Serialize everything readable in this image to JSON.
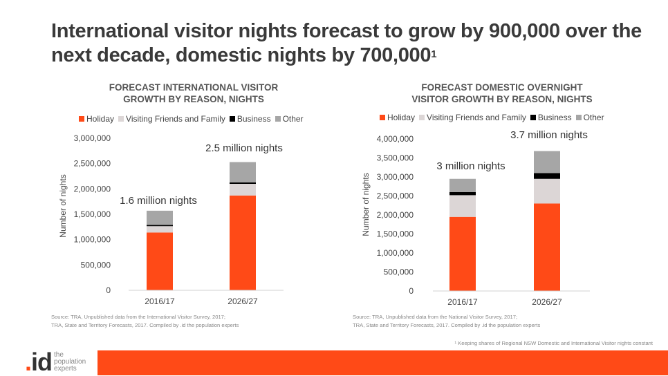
{
  "slide": {
    "title": "International visitor nights forecast to grow by 900,000 over the next decade, domestic nights by 700,000",
    "title_superscript": "1",
    "footnote": "¹ Keeping shares of Regional NSW Domestic and International Visitor nights constant"
  },
  "logo": {
    "mark_dot": ".",
    "mark_text": "id",
    "line1": "the",
    "line2": "population",
    "line3": "experts"
  },
  "colors": {
    "accent": "#ff4a17",
    "holiday": "#ff4a17",
    "vfr": "#dcd6d6",
    "business": "#000000",
    "other": "#a6a6a6"
  },
  "chart_data": [
    {
      "type": "bar",
      "stacked": true,
      "title_line1": "FORECAST INTERNATIONAL VISITOR",
      "title_line2": "GROWTH BY REASON, NIGHTS",
      "ylabel": "Number of nights",
      "xlabel": "",
      "ylim": [
        0,
        3000000
      ],
      "yticks": [
        0,
        500000,
        1000000,
        1500000,
        2000000,
        2500000,
        3000000
      ],
      "ytick_labels": [
        "0",
        "500,000",
        "1,000,000",
        "1,500,000",
        "2,000,000",
        "2,500,000",
        "3,000,000"
      ],
      "grid": false,
      "legend_position": "top",
      "categories": [
        "2016/17",
        "2026/27"
      ],
      "series": [
        {
          "name": "Holiday",
          "color": "#ff4a17",
          "values": [
            1140000,
            1870000
          ]
        },
        {
          "name": "Visiting Friends and Family",
          "color": "#dcd6d6",
          "values": [
            125000,
            230000
          ]
        },
        {
          "name": "Business",
          "color": "#000000",
          "values": [
            25000,
            30000
          ]
        },
        {
          "name": "Other",
          "color": "#a6a6a6",
          "values": [
            280000,
            400000
          ]
        }
      ],
      "annotations": [
        "1.6 million nights",
        "2.5 million nights"
      ],
      "source_line1": "Source: TRA, Unpublished data from the International Visitor Survey, 2017;",
      "source_line2": "TRA, State and Territory Forecasts, 2017. Compiled by .id the population experts"
    },
    {
      "type": "bar",
      "stacked": true,
      "title_line1": "FORECAST DOMESTIC OVERNIGHT",
      "title_line2": "VISITOR GROWTH BY REASON, NIGHTS",
      "ylabel": "Number of nights",
      "xlabel": "",
      "ylim": [
        0,
        4000000
      ],
      "yticks": [
        0,
        500000,
        1000000,
        1500000,
        2000000,
        2500000,
        3000000,
        3500000,
        4000000
      ],
      "ytick_labels": [
        "0",
        "500,000",
        "1,000,000",
        "1,500,000",
        "2,000,000",
        "2,500,000",
        "3,000,000",
        "3,500,000",
        "4,000,000"
      ],
      "grid": false,
      "legend_position": "top",
      "categories": [
        "2016/17",
        "2026/27"
      ],
      "series": [
        {
          "name": "Holiday",
          "color": "#ff4a17",
          "values": [
            1950000,
            2300000
          ]
        },
        {
          "name": "Visiting Friends and Family",
          "color": "#dcd6d6",
          "values": [
            570000,
            650000
          ]
        },
        {
          "name": "Business",
          "color": "#000000",
          "values": [
            80000,
            150000
          ]
        },
        {
          "name": "Other",
          "color": "#a6a6a6",
          "values": [
            350000,
            580000
          ]
        }
      ],
      "annotations": [
        "3 million nights",
        "3.7 million nights"
      ],
      "source_line1": "Source: TRA, Unpublished data from the National Visitor Survey, 2017;",
      "source_line2": "TRA, State and Territory Forecasts, 2017. Compiled by .id the population experts"
    }
  ]
}
